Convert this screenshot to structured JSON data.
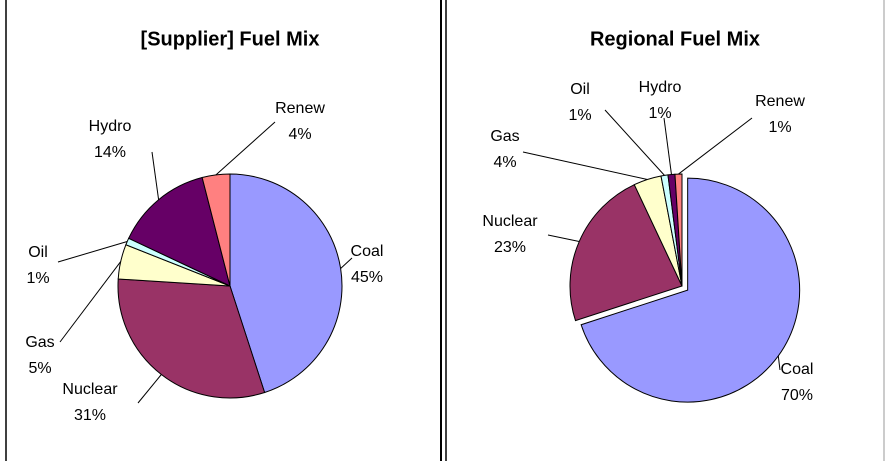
{
  "chart_data": [
    {
      "type": "pie",
      "title": "[Supplier] Fuel Mix",
      "categories": [
        "Coal",
        "Nuclear",
        "Gas",
        "Oil",
        "Hydro",
        "Renew"
      ],
      "values": [
        45,
        31,
        5,
        1,
        14,
        4
      ],
      "value_labels": [
        "45%",
        "31%",
        "5%",
        "1%",
        "14%",
        "4%"
      ],
      "colors": [
        "#9999ff",
        "#993366",
        "#ffffcc",
        "#ccffff",
        "#660066",
        "#ff8080"
      ]
    },
    {
      "type": "pie",
      "title": "Regional Fuel Mix",
      "categories": [
        "Coal",
        "Nuclear",
        "Gas",
        "Oil",
        "Hydro",
        "Renew"
      ],
      "values": [
        70,
        23,
        4,
        1,
        1,
        1
      ],
      "value_labels": [
        "70%",
        "23%",
        "4%",
        "1%",
        "1%",
        "1%"
      ],
      "colors": [
        "#9999ff",
        "#993366",
        "#ffffcc",
        "#ccffff",
        "#660066",
        "#ff8080"
      ]
    }
  ]
}
